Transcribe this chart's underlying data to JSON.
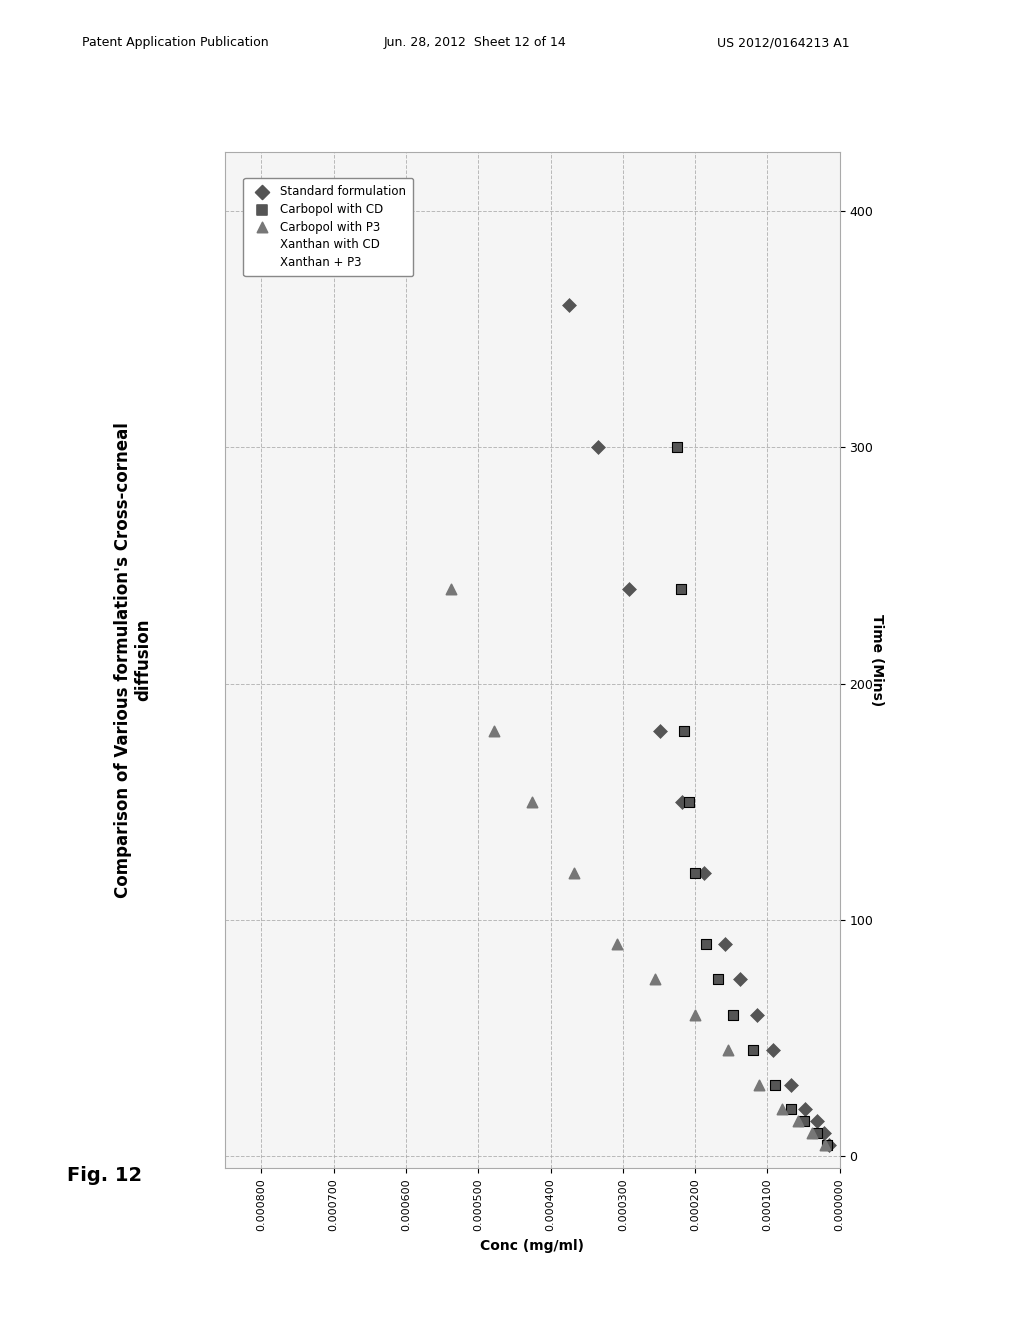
{
  "title_line1": "Comparison of Various formulation's Cross-corneal",
  "title_line2": "diffusion",
  "conc_label": "Conc (mg/ml)",
  "time_label": "Time (Mins)",
  "time_lim": [
    0,
    420
  ],
  "conc_max": 0.00085,
  "conc_min": 0.0,
  "conc_ticks": [
    0.0,
    0.0001,
    0.0002,
    0.0003,
    0.0004,
    0.0005,
    0.0006,
    0.0007,
    0.0008
  ],
  "conc_tick_labels": [
    "0.000000",
    "0.000100",
    "0.000200",
    "0.000300",
    "0.000400",
    "0.000500",
    "0.000600",
    "0.000700",
    "0.000800"
  ],
  "time_ticks": [
    0,
    100,
    200,
    300,
    400
  ],
  "background_color": "#ffffff",
  "plot_border_color": "#aaaaaa",
  "header_left": "Patent Application Publication",
  "header_center": "Jun. 28, 2012  Sheet 12 of 14",
  "header_right": "US 2012/0164213 A1",
  "fig_label": "Fig. 12",
  "legend_items": [
    {
      "name": "Standard formulation",
      "marker": "D",
      "color": "#555555"
    },
    {
      "name": "Carbopol with CD",
      "marker": "s",
      "color": "#555555"
    },
    {
      "name": "Carbopol with P3",
      "marker": "^",
      "color": "#777777"
    },
    {
      "name": "Xanthan with CD",
      "marker": "x",
      "color": "#777777"
    },
    {
      "name": "Xanthan + P3",
      "marker": "x",
      "color": "#aaaaaa"
    }
  ],
  "series": [
    {
      "name": "Standard formulation",
      "marker": "D",
      "color": "#555555",
      "ms": 50,
      "time": [
        5,
        10,
        15,
        20,
        30,
        45,
        60,
        75,
        90,
        120,
        150,
        180,
        240,
        300,
        360
      ],
      "conc": [
        1.5e-05,
        2.2e-05,
        3.2e-05,
        4.8e-05,
        6.8e-05,
        9.2e-05,
        0.000115,
        0.000138,
        0.000158,
        0.000188,
        0.000218,
        0.000248,
        0.000292,
        0.000335,
        0.000375
      ]
    },
    {
      "name": "Carbopol with CD",
      "marker": "s",
      "color": "#555555",
      "ms": 55,
      "time": [
        5,
        10,
        15,
        20,
        30,
        45,
        60,
        75,
        90,
        120,
        150,
        180,
        240,
        300
      ],
      "conc": [
        1.8e-05,
        3.2e-05,
        5e-05,
        6.8e-05,
        9e-05,
        0.00012,
        0.000148,
        0.000168,
        0.000185,
        0.0002,
        0.000208,
        0.000215,
        0.00022,
        0.000225
      ]
    },
    {
      "name": "Carbopol with P3",
      "marker": "^",
      "color": "#777777",
      "ms": 55,
      "time": [
        5,
        10,
        15,
        20,
        30,
        45,
        60,
        75,
        90,
        120,
        150,
        180,
        240
      ],
      "conc": [
        2e-05,
        3.8e-05,
        5.8e-05,
        8e-05,
        0.000112,
        0.000155,
        0.0002,
        0.000255,
        0.000308,
        0.000368,
        0.000425,
        0.000478,
        0.000538
      ]
    },
    {
      "name": "Xanthan with CD",
      "marker": "x",
      "color": "#777777",
      "ms": 60,
      "time": [
        5,
        10,
        15,
        20,
        30,
        45,
        60,
        75,
        90,
        120,
        150,
        180,
        240,
        300
      ],
      "conc": [
        2.2e-05,
        4e-05,
        6e-05,
        8.2e-05,
        0.000108,
        0.000148,
        0.000178,
        0.000198,
        0.000212,
        0.000225,
        0.000175,
        0.000162,
        0.000152,
        0.000145
      ]
    },
    {
      "name": "Xanthan + P3",
      "marker": "x",
      "color": "#aaaaaa",
      "ms": 50,
      "time": [
        30,
        60,
        90,
        120,
        150,
        180,
        210,
        240,
        270,
        300,
        330,
        360,
        390,
        410
      ],
      "conc": [
        0.0006,
        0.00064,
        0.000672,
        0.000695,
        0.000715,
        0.000728,
        0.00074,
        0.00075,
        0.000758,
        0.000762,
        0.000766,
        0.00077,
        0.000772,
        0.000775
      ]
    }
  ]
}
